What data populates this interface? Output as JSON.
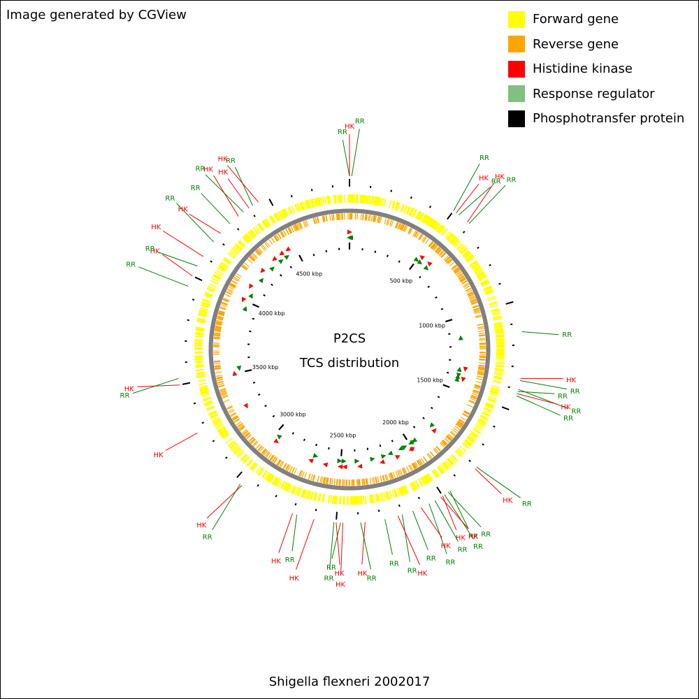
{
  "attribution": "Image generated by CGView",
  "legend": [
    {
      "label": "Forward gene",
      "color": "#ffff00",
      "icon": "square-swatch"
    },
    {
      "label": "Reverse gene",
      "color": "#ffa500",
      "icon": "square-swatch"
    },
    {
      "label": "Histidine kinase",
      "color": "#ff0000",
      "icon": "square-swatch"
    },
    {
      "label": "Response regulator",
      "color": "#80c080",
      "icon": "square-swatch"
    },
    {
      "label": "Phosphotransfer protein",
      "color": "#000000",
      "icon": "square-swatch"
    }
  ],
  "center_title": "P2CS",
  "center_subtitle": "TCS distribution",
  "organism": "Shigella flexneri 2002017",
  "genome_kbp": 4880,
  "colors": {
    "hk": "#ff0000",
    "rr": "#008000",
    "forward": "#ffff00",
    "reverse": "#ffa500",
    "backbone": "#808080",
    "ticks": "#000000"
  },
  "scale_labels": [
    {
      "text": "500 kbp",
      "kbp": 500
    },
    {
      "text": "1000 kbp",
      "kbp": 1000
    },
    {
      "text": "1500 kbp",
      "kbp": 1500
    },
    {
      "text": "2000 kbp",
      "kbp": 2000
    },
    {
      "text": "2500 kbp",
      "kbp": 2500
    },
    {
      "text": "3000 kbp",
      "kbp": 3000
    },
    {
      "text": "3500 kbp",
      "kbp": 3500
    },
    {
      "text": "4000 kbp",
      "kbp": 4000
    },
    {
      "text": "4500 kbp",
      "kbp": 4500
    }
  ],
  "features": [
    {
      "label": "RR",
      "type": "rr",
      "kbp": 0
    },
    {
      "label": "HK",
      "type": "hk",
      "kbp": 0
    },
    {
      "label": "RR",
      "type": "rr",
      "kbp": 10
    },
    {
      "label": "RR",
      "type": "rr",
      "kbp": 500
    },
    {
      "label": "HK",
      "type": "hk",
      "kbp": 515
    },
    {
      "label": "RR",
      "type": "rr",
      "kbp": 530
    },
    {
      "label": "HK",
      "type": "hk",
      "kbp": 580
    },
    {
      "label": "RR",
      "type": "rr",
      "kbp": 590
    },
    {
      "label": "RR",
      "type": "rr",
      "kbp": 1140
    },
    {
      "label": "HK",
      "type": "hk",
      "kbp": 1350
    },
    {
      "label": "RR",
      "type": "rr",
      "kbp": 1360
    },
    {
      "label": "RR",
      "type": "rr",
      "kbp": 1400
    },
    {
      "label": "RR",
      "type": "rr",
      "kbp": 1410
    },
    {
      "label": "HK",
      "type": "hk",
      "kbp": 1420
    },
    {
      "label": "RR",
      "type": "rr",
      "kbp": 1430
    },
    {
      "label": "RR",
      "type": "rr",
      "kbp": 1800
    },
    {
      "label": "HK",
      "type": "hk",
      "kbp": 1810
    },
    {
      "label": "RR",
      "type": "rr",
      "kbp": 1960
    },
    {
      "label": "RR",
      "type": "rr",
      "kbp": 1970
    },
    {
      "label": "RR",
      "type": "rr",
      "kbp": 1990
    },
    {
      "label": "HK",
      "type": "hk",
      "kbp": 2000
    },
    {
      "label": "HK",
      "type": "hk",
      "kbp": 2010
    },
    {
      "label": "RR",
      "type": "rr",
      "kbp": 2040
    },
    {
      "label": "RR",
      "type": "rr",
      "kbp": 2070
    },
    {
      "label": "HK",
      "type": "hk",
      "kbp": 2110
    },
    {
      "label": "RR",
      "type": "rr",
      "kbp": 2150
    },
    {
      "label": "RR",
      "type": "rr",
      "kbp": 2200
    },
    {
      "label": "HK",
      "type": "hk",
      "kbp": 2220
    },
    {
      "label": "RR",
      "type": "rr",
      "kbp": 2280
    },
    {
      "label": "HK",
      "type": "hk",
      "kbp": 2370
    },
    {
      "label": "RR",
      "type": "rr",
      "kbp": 2390
    },
    {
      "label": "HK",
      "type": "hk",
      "kbp": 2470
    },
    {
      "label": "RR",
      "type": "rr",
      "kbp": 2480
    },
    {
      "label": "HK",
      "type": "hk",
      "kbp": 2500
    },
    {
      "label": "RR",
      "type": "rr",
      "kbp": 2510
    },
    {
      "label": "HK",
      "type": "hk",
      "kbp": 2600
    },
    {
      "label": "RR",
      "type": "rr",
      "kbp": 2680
    },
    {
      "label": "HK",
      "type": "hk",
      "kbp": 2700
    },
    {
      "label": "HK",
      "type": "hk",
      "kbp": 2960
    },
    {
      "label": "RR",
      "type": "rr",
      "kbp": 2970
    },
    {
      "label": "HK",
      "type": "hk",
      "kbp": 3270
    },
    {
      "label": "HK",
      "type": "hk",
      "kbp": 3500
    },
    {
      "label": "RR",
      "type": "rr",
      "kbp": 3530
    },
    {
      "label": "RR",
      "type": "rr",
      "kbp": 3950
    },
    {
      "label": "HK",
      "type": "hk",
      "kbp": 4000
    },
    {
      "label": "RR",
      "type": "rr",
      "kbp": 4050
    },
    {
      "label": "HK",
      "type": "hk",
      "kbp": 4100
    },
    {
      "label": "RR",
      "type": "rr",
      "kbp": 4180
    },
    {
      "label": "HK",
      "type": "hk",
      "kbp": 4230
    },
    {
      "label": "RR",
      "type": "rr",
      "kbp": 4290
    },
    {
      "label": "HK",
      "type": "hk",
      "kbp": 4340
    },
    {
      "label": "RR",
      "type": "rr",
      "kbp": 4370
    },
    {
      "label": "HK",
      "type": "hk",
      "kbp": 4400
    },
    {
      "label": "RR",
      "type": "rr",
      "kbp": 4420
    },
    {
      "label": "HK",
      "type": "hk",
      "kbp": 4450
    }
  ]
}
